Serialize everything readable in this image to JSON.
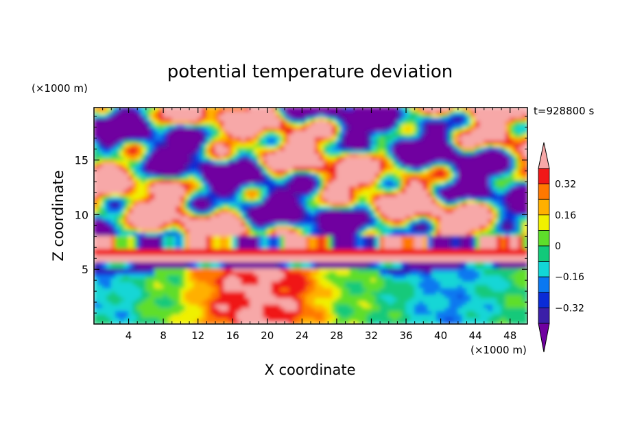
{
  "chart_data": {
    "type": "heatmap",
    "title": "potential temperature deviation",
    "xlabel": "X coordinate",
    "ylabel": "Z coordinate",
    "x_unit": "(×1000 m)",
    "y_unit": "(×1000 m)",
    "time_label": "t=928800 s",
    "xlim": [
      0,
      50
    ],
    "ylim": [
      0,
      19.8
    ],
    "x_ticks": [
      "4",
      "8",
      "12",
      "16",
      "20",
      "24",
      "28",
      "32",
      "36",
      "40",
      "44",
      "48"
    ],
    "y_ticks": [
      "5",
      "10",
      "15"
    ],
    "colorbar": {
      "levels": [
        -0.4,
        -0.32,
        -0.24,
        -0.16,
        -0.08,
        0,
        0.08,
        0.16,
        0.24,
        0.32,
        0.4
      ],
      "tick_labels": [
        "0.32",
        "0.16",
        "0",
        "−0.16",
        "−0.32"
      ],
      "tick_values": [
        0.32,
        0.16,
        0,
        -0.16,
        -0.32
      ],
      "colors": [
        "#7000a0",
        "#3b1fa8",
        "#0a2bd6",
        "#0a78f0",
        "#12d6d6",
        "#12c97a",
        "#5ede2a",
        "#f0f000",
        "#ffb000",
        "#ff7800",
        "#f01818",
        "#f7a8a8"
      ]
    }
  }
}
